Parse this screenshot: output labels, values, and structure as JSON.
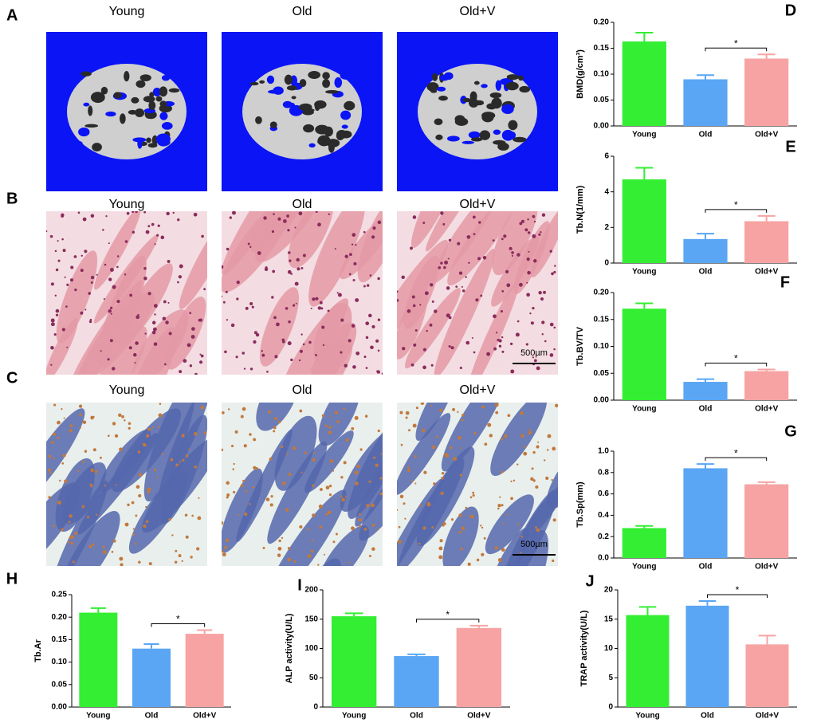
{
  "image_panels": [
    {
      "letter": "A",
      "labels": [
        "Young",
        "Old",
        "Old+V"
      ]
    },
    {
      "letter": "B",
      "labels": [
        "Young",
        "Old",
        "Old+V"
      ],
      "scale_bar": "500µm"
    },
    {
      "letter": "C",
      "labels": [
        "Young",
        "Old",
        "Old+V"
      ],
      "scale_bar": "500µm"
    }
  ],
  "chart_data": [
    {
      "type": "bar",
      "letter": "D",
      "ylabel": "BMD(g/cm³)",
      "categories": [
        "Young",
        "Old",
        "Old+V"
      ],
      "values": [
        0.163,
        0.09,
        0.13
      ],
      "errors": [
        0.017,
        0.008,
        0.008
      ],
      "colors": [
        "#33ee33",
        "#5aa6f5",
        "#f7a3a3"
      ],
      "ylim": [
        0,
        0.2
      ],
      "yticks": [
        {
          "value": 0,
          "label": "0.00"
        },
        {
          "value": 0.05,
          "label": "0.05"
        },
        {
          "value": 0.1,
          "label": "0.10"
        },
        {
          "value": 0.15,
          "label": "0.15"
        },
        {
          "value": 0.2,
          "label": "0.20"
        }
      ],
      "annotation": "*"
    },
    {
      "type": "bar",
      "letter": "E",
      "ylabel": "Tb.N(1/mm)",
      "categories": [
        "Young",
        "Old",
        "Old+V"
      ],
      "values": [
        4.7,
        1.35,
        2.35
      ],
      "errors": [
        0.65,
        0.3,
        0.3
      ],
      "colors": [
        "#33ee33",
        "#5aa6f5",
        "#f7a3a3"
      ],
      "ylim": [
        0,
        6
      ],
      "yticks": [
        0,
        2,
        4,
        6
      ],
      "annotation": "*"
    },
    {
      "type": "bar",
      "letter": "F",
      "ylabel": "Tb.BV/TV",
      "categories": [
        "Young",
        "Old",
        "Old+V"
      ],
      "values": [
        0.17,
        0.034,
        0.054
      ],
      "errors": [
        0.01,
        0.005,
        0.003
      ],
      "colors": [
        "#33ee33",
        "#5aa6f5",
        "#f7a3a3"
      ],
      "ylim": [
        0,
        0.2
      ],
      "yticks": [
        {
          "value": 0,
          "label": "0.00"
        },
        {
          "value": 0.05,
          "label": "0.05"
        },
        {
          "value": 0.1,
          "label": "0.10"
        },
        {
          "value": 0.15,
          "label": "0.15"
        },
        {
          "value": 0.2,
          "label": "0.20"
        }
      ],
      "annotation": "*"
    },
    {
      "type": "bar",
      "letter": "G",
      "ylabel": "Tb.Sp(mm)",
      "categories": [
        "Young",
        "Old",
        "Old+V"
      ],
      "values": [
        0.28,
        0.84,
        0.69
      ],
      "errors": [
        0.02,
        0.04,
        0.02
      ],
      "colors": [
        "#33ee33",
        "#5aa6f5",
        "#f7a3a3"
      ],
      "ylim": [
        0,
        1
      ],
      "yticks": [
        {
          "value": 0,
          "label": "0.0"
        },
        {
          "value": 0.2,
          "label": "0.2"
        },
        {
          "value": 0.4,
          "label": "0.4"
        },
        {
          "value": 0.6,
          "label": "0.6"
        },
        {
          "value": 0.8,
          "label": "0.8"
        },
        {
          "value": 1,
          "label": "1.0"
        }
      ],
      "annotation": "*"
    },
    {
      "type": "bar",
      "letter": "H",
      "ylabel": "Tb.Ar",
      "categories": [
        "Young",
        "Old",
        "Old+V"
      ],
      "values": [
        0.21,
        0.13,
        0.163
      ],
      "errors": [
        0.01,
        0.01,
        0.008
      ],
      "colors": [
        "#33ee33",
        "#5aa6f5",
        "#f7a3a3"
      ],
      "ylim": [
        0,
        0.25
      ],
      "yticks": [
        {
          "value": 0,
          "label": "0.00"
        },
        {
          "value": 0.05,
          "label": "0.05"
        },
        {
          "value": 0.1,
          "label": "0.10"
        },
        {
          "value": 0.15,
          "label": "0.15"
        },
        {
          "value": 0.2,
          "label": "0.20"
        },
        {
          "value": 0.25,
          "label": "0.25"
        }
      ],
      "annotation": "*"
    },
    {
      "type": "bar",
      "letter": "I",
      "ylabel": "ALP activity(U/L)",
      "categories": [
        "Young",
        "Old",
        "Old+V"
      ],
      "values": [
        155,
        87,
        135
      ],
      "errors": [
        5,
        3,
        4
      ],
      "colors": [
        "#33ee33",
        "#5aa6f5",
        "#f7a3a3"
      ],
      "ylim": [
        0,
        200
      ],
      "yticks": [
        0,
        50,
        100,
        150,
        200
      ],
      "annotation": "*"
    },
    {
      "type": "bar",
      "letter": "J",
      "ylabel": "TRAP activity(U/L)",
      "categories": [
        "Young",
        "Old",
        "Old+V"
      ],
      "values": [
        15.7,
        17.3,
        10.7
      ],
      "errors": [
        1.4,
        0.8,
        1.5
      ],
      "colors": [
        "#33ee33",
        "#5aa6f5",
        "#f7a3a3"
      ],
      "ylim": [
        0,
        20
      ],
      "yticks": [
        0,
        5,
        10,
        15,
        20
      ],
      "annotation": "*"
    }
  ]
}
